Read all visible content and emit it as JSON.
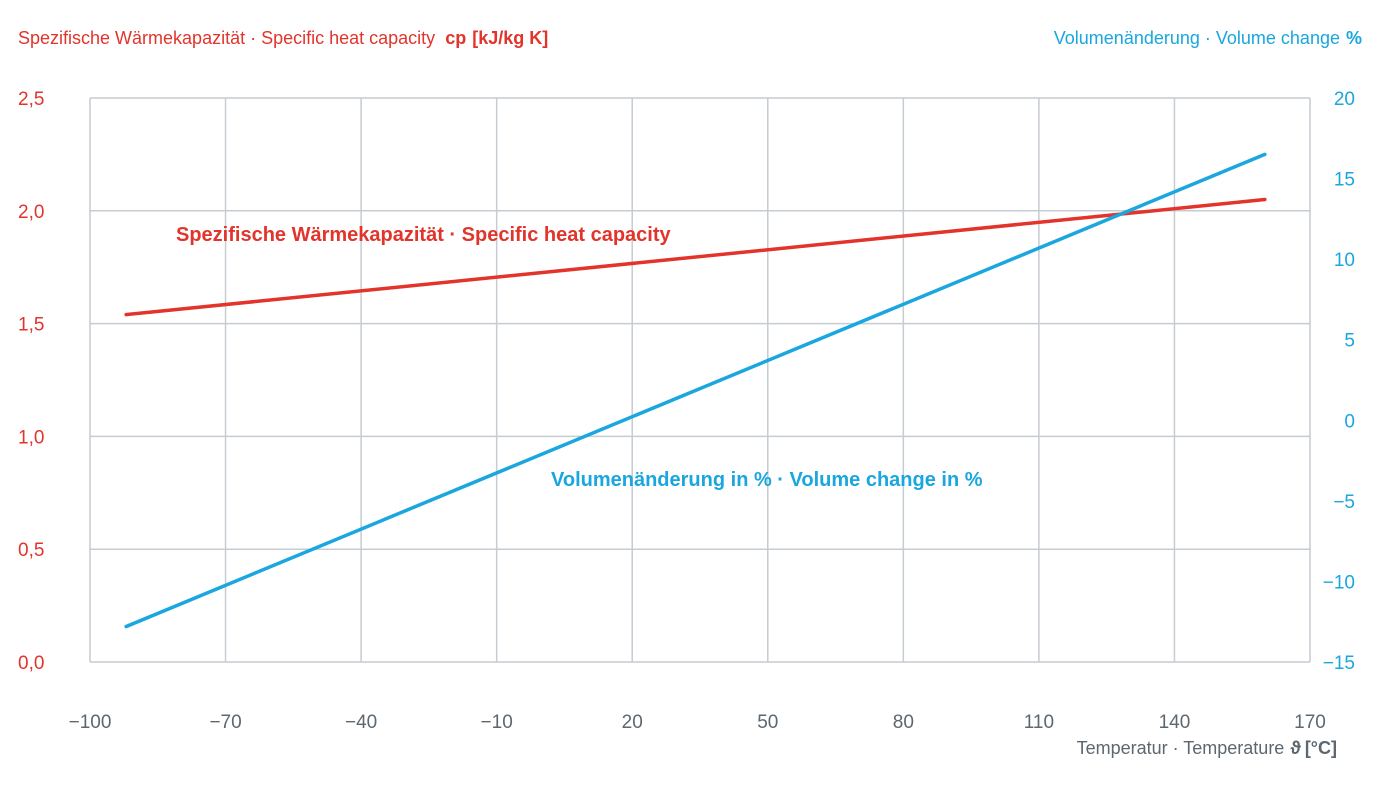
{
  "chart_data": {
    "type": "line",
    "left_axis_title": {
      "text": "Spezifische Wärmekapazität · Specific heat capacity",
      "symbol": "cp",
      "unit": "[kJ/kg K]"
    },
    "right_axis_title": {
      "text": "Volumenänderung · Volume change",
      "unit": "%"
    },
    "x_axis_title": {
      "text": "Temperatur · Temperature",
      "symbol": "ϑ",
      "unit": "[°C]"
    },
    "x_ticks": [
      "−100",
      "−70",
      "−40",
      "−10",
      "20",
      "50",
      "80",
      "110",
      "140",
      "170"
    ],
    "x_tick_values": [
      -100,
      -70,
      -40,
      -10,
      20,
      50,
      80,
      110,
      140,
      170
    ],
    "y_left_ticks": [
      "0,0",
      "0,5",
      "1,0",
      "1,5",
      "2,0",
      "2,5"
    ],
    "y_left_values": [
      0,
      0.5,
      1.0,
      1.5,
      2.0,
      2.5
    ],
    "y_right_ticks": [
      "−15",
      "−10",
      "−5",
      "0",
      "5",
      "10",
      "15",
      "20"
    ],
    "y_right_values": [
      -15,
      -10,
      -5,
      0,
      5,
      10,
      15,
      20
    ],
    "xlim": [
      -100,
      170
    ],
    "ylim_left": [
      0,
      2.5
    ],
    "ylim_right": [
      -15,
      20
    ],
    "grid": true,
    "series": [
      {
        "name": "Spezifische Wärmekapazität · Specific heat capacity",
        "axis": "left",
        "color": "#e2342b",
        "x": [
          -92,
          160
        ],
        "y": [
          1.54,
          2.05
        ]
      },
      {
        "name": "Volumenänderung in % · Volume change in %",
        "axis": "right",
        "color": "#1aa6de",
        "x": [
          -92,
          160
        ],
        "y": [
          -12.8,
          16.5
        ]
      }
    ]
  }
}
